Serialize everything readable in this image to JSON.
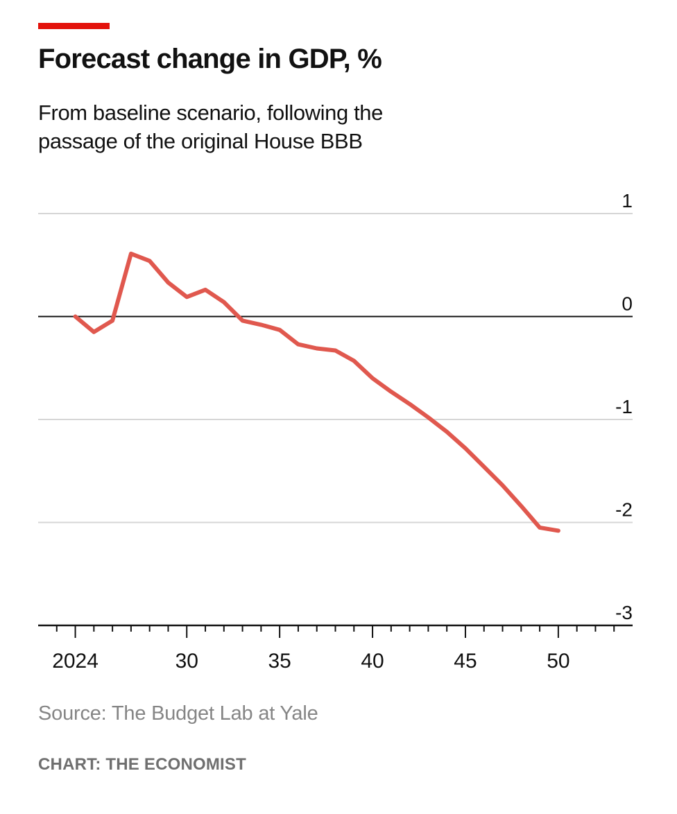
{
  "title": "Forecast change in GDP, %",
  "subtitle_lines": [
    "From baseline scenario, following the",
    "passage of the original House BBB"
  ],
  "source": "Source: The Budget Lab at Yale",
  "credit": "CHART: THE ECONOMIST",
  "colors": {
    "accent": "#e3120b",
    "series": "#e0584e",
    "gridline": "#d6d6d6",
    "zero_line": "#111111",
    "axis": "#111111"
  },
  "chart_data": {
    "type": "line",
    "title": "Forecast change in GDP, %",
    "subtitle": "From baseline scenario, following the passage of the original House BBB",
    "xlabel": "",
    "ylabel": "",
    "xlim": [
      2022,
      2054
    ],
    "ylim": [
      -3,
      1
    ],
    "y_ticks": [
      1,
      0,
      -1,
      -2,
      -3
    ],
    "y_tick_labels": [
      "1",
      "0",
      "-1",
      "-2",
      "-3"
    ],
    "x_major_ticks": [
      2024,
      2030,
      2035,
      2040,
      2045,
      2050
    ],
    "x_tick_labels": [
      "2024",
      "30",
      "35",
      "40",
      "45",
      "50"
    ],
    "grid": true,
    "legend": "none",
    "series": [
      {
        "name": "Forecast change in GDP",
        "x": [
          2024,
          2025,
          2026,
          2027,
          2028,
          2029,
          2030,
          2031,
          2032,
          2033,
          2034,
          2035,
          2036,
          2037,
          2038,
          2039,
          2040,
          2041,
          2042,
          2043,
          2044,
          2045,
          2046,
          2047,
          2048,
          2049,
          2050
        ],
        "values": [
          0.0,
          -0.15,
          -0.04,
          0.61,
          0.54,
          0.33,
          0.19,
          0.26,
          0.14,
          -0.04,
          -0.08,
          -0.13,
          -0.27,
          -0.31,
          -0.33,
          -0.43,
          -0.6,
          -0.73,
          -0.85,
          -0.98,
          -1.12,
          -1.28,
          -1.46,
          -1.64,
          -1.84,
          -2.05,
          -2.08
        ]
      }
    ]
  }
}
